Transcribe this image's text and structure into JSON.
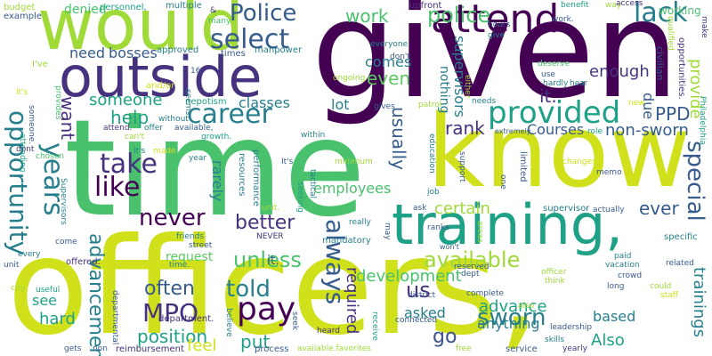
{
  "cloud": {
    "large": {
      "given": "given",
      "time": "time",
      "officers": "officers,",
      "know": "know",
      "would": "would",
      "outside": "outside",
      "training": "training,"
    },
    "medium": {
      "attend": "attend",
      "police_cap": "Police",
      "police": "police",
      "provided": "provided",
      "select": "select",
      "opportunity": "opportunity",
      "years": "years",
      "career": "career",
      "take": "take",
      "like": "like",
      "never": "never",
      "pay": "pay",
      "sworn": "sworn",
      "mpo": "MPO",
      "told": "told",
      "lack": "lack",
      "work": "work",
      "someone": "someone",
      "want": "want",
      "help": "help",
      "even": "even",
      "ppd": "PPD",
      "always": "always",
      "better": "better",
      "usually": "usually",
      "unless": "unless",
      "available": "available",
      "advancement": "advancement",
      "often": "often",
      "us": "us",
      "required": "required",
      "special": "special",
      "provide": "provide",
      "rank": "rank",
      "certain": "certain",
      "development": "development",
      "advance": "advance",
      "position": "position",
      "put": "put",
      "feel": "feel",
      "go": "go",
      "it": "it.",
      "ever": "ever",
      "enough": "enough",
      "due": "due",
      "trainings": "trainings",
      "non_sworn": "non-sworn",
      "courses": "Courses",
      "classes": "classes",
      "employees": "employees",
      "anything": "anything",
      "asked": "asked",
      "also_cap": "Also",
      "based": "based",
      "need": "need",
      "bosses": "bosses",
      "comes": "comes",
      "lot": "lot",
      "nothing": "nothing",
      "supervisors": "supervisors",
      "rarely": "rarely",
      "hard": "hard",
      "see": "see",
      "request": "request",
      "working": "working",
      "denied": "denied"
    },
    "small": {
      "budget": "budget",
      "example": "example",
      "personnel": "personnel,",
      "multiple": "multiple",
      "upfront": "upfront",
      "benefit": "benefit",
      "way": "way",
      "access": "access",
      "many": "many",
      "approved": "approved",
      "times": "times",
      "manpower": "manpower",
      "dont": "don't",
      "ive": "I've",
      "and_or": "and/or",
      "nepotism": "nepotism",
      "ongoing": "ongoing",
      "everyone": "everyone",
      "hours": "hours",
      "give": "give",
      "use": "use",
      "hardly": "hardly",
      "hear": "hear",
      "deserve": "deserve",
      "civilian": "civilian",
      "qualified": "qualified",
      "make": "make",
      "opportunities": "opportunities.",
      "philadelphia": "Philadelphia",
      "role": "role",
      "extremely": "extremely",
      "patrol": "patrol",
      "needs": "needs",
      "new": "new",
      "gives": "gives",
      "without": "without",
      "offer": "offer",
      "attend_dot": "attend.",
      "cant": "can't",
      "growth": "growth.",
      "within": "within",
      "its_lower": "it's",
      "its": "It's",
      "made": "made",
      "year": "year",
      "minimum": "minimum",
      "tactical": "tactical",
      "seeking": "seeking",
      "resources": "resources",
      "performance": "performance",
      "attending": "attending",
      "chosen": "chosen",
      "education": "education",
      "support": "support",
      "limited": "limited",
      "one": "one",
      "job": "job",
      "changes": "changes",
      "memo": "memo",
      "supervisor": "supervisor",
      "actually": "actually",
      "ask": "ask",
      "ranks": "ranks",
      "wont": "won't",
      "areas": "areas",
      "specific": "specific",
      "paid": "paid",
      "vacation": "vacation",
      "related": "related",
      "long": "long",
      "crowd": "crowd",
      "could": "could",
      "staff": "staff",
      "think": "think",
      "officer": "officer",
      "reserved": "reserved",
      "dept": "dept",
      "district": "district",
      "connected": "connected",
      "complete": "complete",
      "also": "also",
      "leadership": "leadership",
      "skills": "skills",
      "yearly": "yearly",
      "free": "free",
      "service": "service",
      "mandatory": "mandatory",
      "really": "really",
      "may": "may",
      "friends": "friends",
      "street": "street",
      "never_cap": "NEVER",
      "time_dot": "time.",
      "offered": "offered.",
      "come": "come",
      "every": "every",
      "unit": "unit",
      "useful": "useful",
      "city": "city",
      "departmental": "departmental",
      "department": "department.",
      "believe": "believe",
      "seek": "seek",
      "heard": "heard",
      "gets": "gets",
      "reimbursement": "reimbursement",
      "non": "non",
      "process": "process",
      "available_favorites": "available.favorites",
      "receive": "receive",
      "unit_dot": "unit.",
      "seems": "seems",
      "either": "either",
      "someone_dot": "someone.",
      "provides": "provides",
      "supervisors_cap": "Supervisors",
      "dont_plain": "dont",
      "it_s": "it's",
      "work_dot": "work.",
      "amp": "&",
      "sixteen": "16",
      "available_comma": "available,",
      "it_dot2": "it."
    }
  }
}
